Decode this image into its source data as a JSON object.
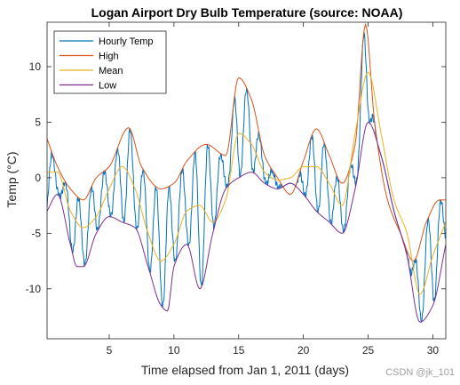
{
  "chart_data": {
    "type": "line",
    "title": "Logan Airport Dry Bulb Temperature (source: NOAA)",
    "xlabel": "Time elapsed from Jan 1, 2011 (days)",
    "ylabel": "Temp (°C)",
    "xlim": [
      0.2,
      31
    ],
    "ylim": [
      -14.5,
      14
    ],
    "xticks": [
      5,
      10,
      15,
      20,
      25,
      30
    ],
    "yticks": [
      -10,
      -5,
      0,
      5,
      10
    ],
    "grid": false,
    "legend_position": "top-left",
    "series": [
      {
        "name": "Hourly Temp",
        "color": "#0072BD"
      },
      {
        "name": "High",
        "color": "#D95319",
        "x": [
          0.2,
          1,
          2,
          3,
          4,
          5,
          6.5,
          7.5,
          9,
          10,
          11,
          12.5,
          14,
          15,
          16,
          17,
          18,
          19,
          20,
          21,
          22,
          23,
          24,
          24.8,
          25.5,
          26.5,
          27.5,
          28.5,
          29.5,
          30.5,
          31
        ],
        "y": [
          3.5,
          1,
          -1,
          -2,
          0,
          1,
          4.5,
          1,
          -1,
          -0.5,
          1.5,
          3,
          2,
          9,
          7,
          2,
          0,
          -1.5,
          1.5,
          4.4,
          2,
          -0.5,
          3,
          13.8,
          5,
          -2,
          -5,
          -7.5,
          -4,
          -2,
          -2
        ]
      },
      {
        "name": "Mean",
        "color": "#EDB120",
        "x": [
          0.2,
          1,
          2,
          3,
          4,
          5,
          6,
          7,
          8,
          9,
          10,
          11,
          12,
          13,
          14,
          15,
          16,
          17,
          18,
          19,
          20,
          21,
          22,
          23,
          24,
          25,
          26,
          27,
          28,
          29,
          30,
          31
        ],
        "y": [
          0.5,
          0.5,
          -3,
          -4.5,
          -3.5,
          -1,
          1,
          -1,
          -5,
          -7.5,
          -6,
          -3,
          -2.5,
          -4,
          -2,
          4,
          3,
          0.5,
          -0.2,
          0,
          1,
          1,
          -0.5,
          -2.5,
          4,
          9.5,
          4,
          -2,
          -5,
          -10.5,
          -7,
          -4
        ]
      },
      {
        "name": "Low",
        "color": "#7E2F8E",
        "x": [
          0.2,
          1,
          2,
          2.5,
          3,
          4,
          5,
          6,
          7,
          8,
          9,
          9.5,
          10,
          11,
          12,
          13,
          14,
          15,
          16,
          17,
          18,
          19,
          20,
          21,
          22,
          23,
          24,
          25,
          26,
          27,
          28,
          29,
          30,
          31
        ],
        "y": [
          -3,
          -1.5,
          -6,
          -8,
          -8,
          -5,
          -3.5,
          -4,
          -4.5,
          -8,
          -11.5,
          -12,
          -8,
          -6,
          -10,
          -5,
          -1,
          0,
          0.5,
          -0.5,
          -1,
          -0.5,
          -1.5,
          -3,
          -4,
          -5,
          -1,
          5,
          2,
          -3,
          -7,
          -13,
          -11.5,
          -6
        ]
      }
    ]
  },
  "watermark": "CSDN @jk_101"
}
